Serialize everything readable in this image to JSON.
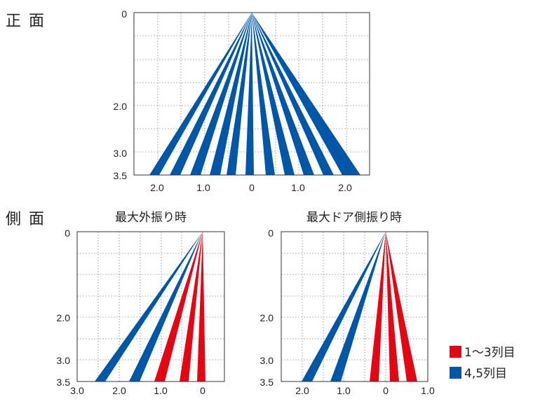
{
  "colors": {
    "rows_1_3": "#e30613",
    "rows_4_5": "#0057a8",
    "grid": "#9a9a9a",
    "frame": "#333333"
  },
  "front": {
    "label": "正 面",
    "depth_ticks": [
      "0",
      "2.0",
      "3.0",
      "3.5"
    ],
    "width_ticks": [
      "2.0",
      "1.0",
      "0",
      "1.0",
      "2.0"
    ]
  },
  "side": {
    "label": "側 面",
    "left": {
      "title": "最大外振り時",
      "depth_ticks": [
        "0",
        "2.0",
        "3.0",
        "3.5"
      ],
      "width_ticks": [
        "3.0",
        "2.0",
        "1.0",
        "0"
      ]
    },
    "right": {
      "title": "最大ドア側振り時",
      "depth_ticks": [
        "0",
        "2.0",
        "3.0",
        "3.5"
      ],
      "width_ticks": [
        "2.0",
        "1.0",
        "0",
        "1.0"
      ]
    }
  },
  "legend": [
    {
      "label": "1〜3列目",
      "color": "#e30613"
    },
    {
      "label": "4,5列目",
      "color": "#0057a8"
    }
  ]
}
